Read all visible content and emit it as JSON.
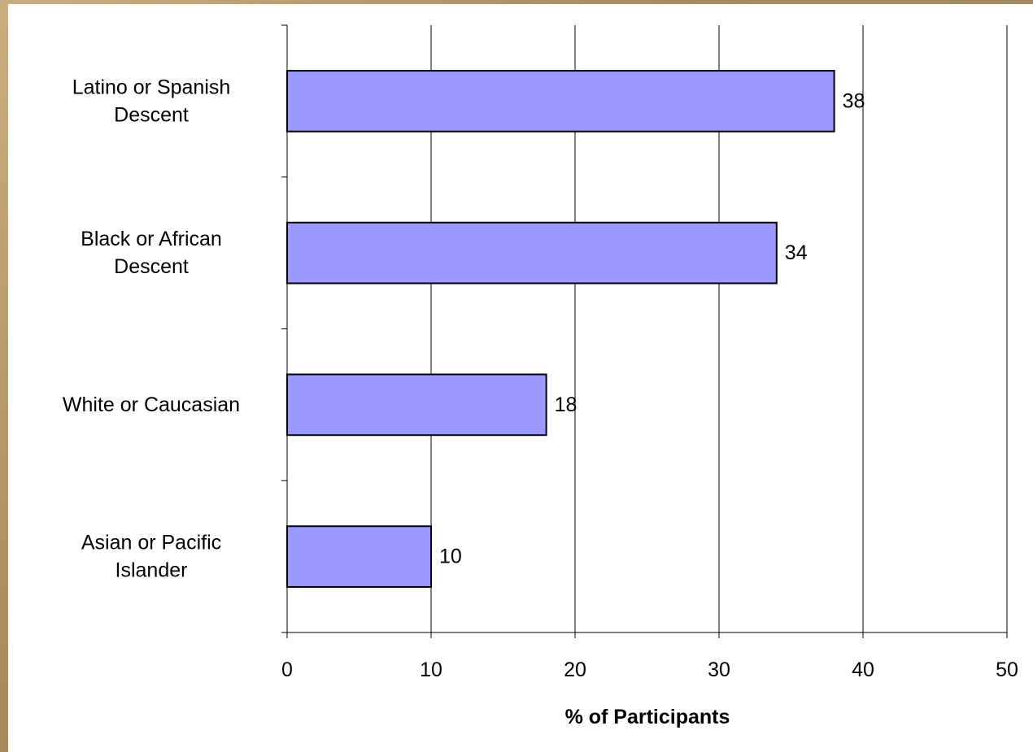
{
  "chart_data": {
    "type": "bar",
    "orientation": "horizontal",
    "categories": [
      [
        "Latino or Spanish",
        "Descent"
      ],
      [
        "Black or African",
        "Descent"
      ],
      [
        "White or Caucasian"
      ],
      [
        "Asian or Pacific",
        "Islander"
      ]
    ],
    "values": [
      38,
      34,
      18,
      10
    ],
    "data_labels": [
      "38",
      "34",
      "18",
      "10"
    ],
    "title": "",
    "xlabel": "% of Participants",
    "ylabel": "",
    "xlim": [
      0,
      50
    ],
    "x_ticks": [
      0,
      10,
      20,
      30,
      40,
      50
    ],
    "x_tick_labels": [
      "0",
      "10",
      "20",
      "30",
      "40",
      "50"
    ],
    "grid": "vertical",
    "legend": "none",
    "colors": {
      "bar_fill": "#9999ff",
      "bar_stroke": "#000000",
      "gridline": "#000000",
      "background": "#ffffff"
    }
  }
}
